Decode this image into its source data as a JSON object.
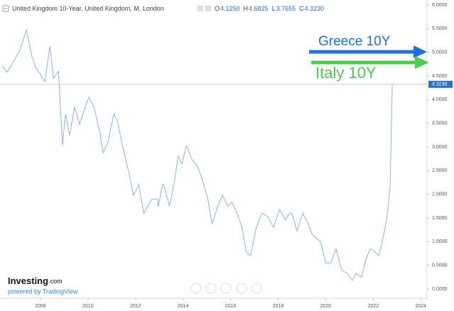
{
  "chart_data": {
    "type": "line",
    "legend_title": "United Kingdom 10-Year, United Kingdom, M, London",
    "ohlc": [
      {
        "key": "O",
        "value": "4.1250"
      },
      {
        "key": "H",
        "value": "4.6825"
      },
      {
        "key": "L",
        "value": "3.7655"
      },
      {
        "key": "C",
        "value": "4.3230"
      }
    ],
    "series": [
      {
        "color": "#8fb3dd",
        "x": [
          2006.39,
          2006.6,
          2006.9,
          2007.14,
          2007.41,
          2007.65,
          2007.8,
          2008.01,
          2008.19,
          2008.4,
          2008.55,
          2008.76,
          2008.93,
          2009.05,
          2009.23,
          2009.44,
          2009.65,
          2009.89,
          2010.04,
          2010.25,
          2010.49,
          2010.64,
          2010.84,
          2011.09,
          2011.24,
          2011.45,
          2011.7,
          2011.91,
          2012.14,
          2012.35,
          2012.69,
          2012.93,
          2012.95,
          2012.96,
          2013.14,
          2013.19,
          2013.43,
          2013.64,
          2013.79,
          2013.96,
          2014.14,
          2014.38,
          2014.62,
          2014.83,
          2015.04,
          2015.22,
          2015.46,
          2015.66,
          2015.88,
          2016.06,
          2016.27,
          2016.48,
          2016.66,
          2016.84,
          2017.08,
          2017.32,
          2017.56,
          2017.8,
          2018.06,
          2018.3,
          2018.48,
          2018.58,
          2018.79,
          2019.04,
          2019.26,
          2019.43,
          2019.78,
          2020.01,
          2020.22,
          2020.43,
          2020.67,
          2020.91,
          2021.11,
          2021.27,
          2021.51,
          2021.69,
          2021.87,
          2022.08,
          2022.23,
          2022.38,
          2022.5,
          2022.62,
          2022.71,
          2022.8
        ],
        "values": [
          4.72,
          4.58,
          4.83,
          5.05,
          5.47,
          4.9,
          4.68,
          4.53,
          4.38,
          5.13,
          4.45,
          4.6,
          3.03,
          3.7,
          3.25,
          3.85,
          3.48,
          3.85,
          4.05,
          3.85,
          3.33,
          2.88,
          3.1,
          3.7,
          3.55,
          3.03,
          2.5,
          1.98,
          2.2,
          1.6,
          1.9,
          1.9,
          1.75,
          1.75,
          2.2,
          2.2,
          1.75,
          2.28,
          2.8,
          2.65,
          3.03,
          2.73,
          2.58,
          2.28,
          1.9,
          1.38,
          1.75,
          1.98,
          1.75,
          1.83,
          1.6,
          1.3,
          0.78,
          0.7,
          1.3,
          1.6,
          1.53,
          1.3,
          1.68,
          1.46,
          1.6,
          1.6,
          1.23,
          1.6,
          1.38,
          1.16,
          1.0,
          0.55,
          0.55,
          0.85,
          0.4,
          0.33,
          0.18,
          0.33,
          0.25,
          0.63,
          0.85,
          0.78,
          0.7,
          1.0,
          1.3,
          1.68,
          2.2,
          4.323
        ]
      }
    ],
    "last_price": {
      "value": 4.323,
      "label": "4.3230"
    },
    "xlim": [
      2006.3,
      2024.26
    ],
    "xticks": [
      2008,
      2010,
      2012,
      2014,
      2016,
      2018,
      2020,
      2022,
      2024
    ],
    "ylim": [
      -0.195,
      6.105
    ],
    "yticks": [
      {
        "value": 0,
        "label": "0.0000"
      },
      {
        "value": 0.5,
        "label": "0.5000"
      },
      {
        "value": 1,
        "label": "1.0000"
      },
      {
        "value": 1.5,
        "label": "1.5000"
      },
      {
        "value": 2,
        "label": "2.0000"
      },
      {
        "value": 2.5,
        "label": "2.5000"
      },
      {
        "value": 3,
        "label": "3.0000"
      },
      {
        "value": 3.5,
        "label": "3.5000"
      },
      {
        "value": 4,
        "label": "4.0000"
      },
      {
        "value": 4.5,
        "label": "4.5000"
      },
      {
        "value": 5,
        "label": "5.0000"
      },
      {
        "value": 5.5,
        "label": "5.5000"
      },
      {
        "value": 6,
        "label": "6.0000"
      }
    ],
    "annotations": [
      {
        "text": "Greece 10Y",
        "color": "#1f6fe5"
      },
      {
        "text": "Italy 10Y",
        "color": "#4ccc4c"
      }
    ],
    "logo": "Investing",
    "logo_suffix": ".com",
    "powered_by": "powered by TradingView"
  }
}
